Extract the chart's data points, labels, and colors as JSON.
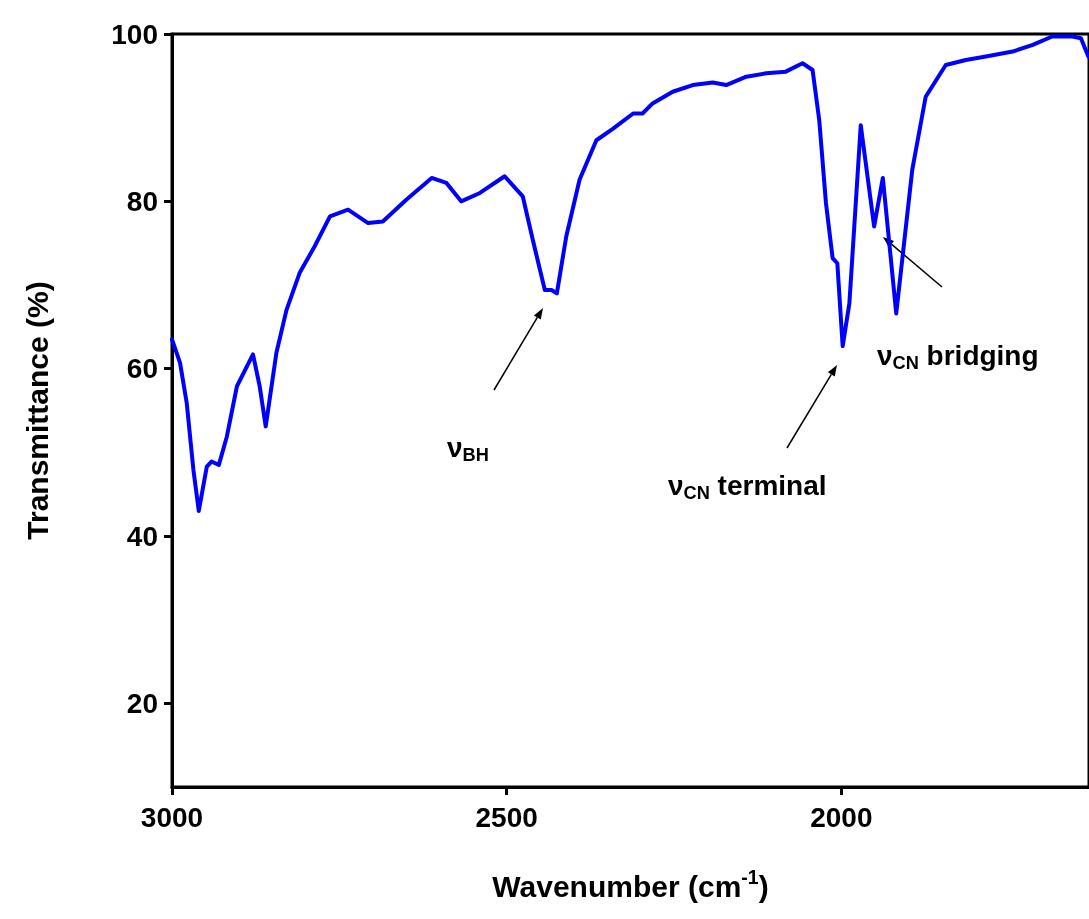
{
  "chart_data": {
    "type": "line",
    "xlabel": "Wavenumber (cm$^{-1}$)",
    "ylabel": "Transmittance (%)",
    "xlim": [
      3000,
      1630
    ],
    "xticks": [
      3000,
      2500,
      2000
    ],
    "ylim": [
      10,
      100
    ],
    "yticks": [
      20,
      40,
      60,
      80,
      100
    ],
    "grid": false,
    "marker": "none",
    "line_style": "solid",
    "x": [
      3000,
      2988,
      2978,
      2968,
      2960,
      2948,
      2941,
      2930,
      2918,
      2903,
      2879,
      2869,
      2860,
      2844,
      2829,
      2809,
      2787,
      2764,
      2737,
      2707,
      2685,
      2650,
      2612,
      2590,
      2568,
      2540,
      2503,
      2476,
      2461,
      2443,
      2433,
      2425,
      2411,
      2391,
      2366,
      2341,
      2311,
      2297,
      2282,
      2252,
      2222,
      2192,
      2172,
      2142,
      2112,
      2083,
      2058,
      2043,
      2033,
      2023,
      2013,
      2006,
      1998,
      1988,
      1971,
      1951,
      1938,
      1918,
      1894,
      1874,
      1844,
      1814,
      1784,
      1744,
      1714,
      1685,
      1655,
      1642,
      1631
    ],
    "series": [
      {
        "color": "#0000ff",
        "values": [
          63.5,
          60.7,
          55.9,
          47.9,
          43.0,
          48.3,
          48.9,
          48.5,
          51.9,
          57.9,
          61.7,
          57.9,
          53.1,
          61.9,
          67.0,
          71.5,
          74.6,
          78.2,
          79.0,
          77.4,
          77.6,
          80.2,
          82.8,
          82.2,
          80.0,
          81.0,
          83.0,
          80.6,
          75.4,
          69.4,
          69.4,
          69.0,
          75.8,
          82.6,
          87.3,
          88.7,
          90.5,
          90.5,
          91.7,
          93.1,
          93.9,
          94.2,
          93.9,
          94.9,
          95.3,
          95.5,
          96.5,
          95.7,
          89.7,
          79.8,
          73.2,
          72.6,
          62.7,
          67.8,
          89.1,
          77.0,
          82.8,
          66.6,
          83.8,
          92.5,
          96.3,
          96.9,
          97.3,
          97.9,
          98.7,
          99.7,
          99.7,
          99.5,
          97.3
        ]
      }
    ],
    "annotations": [
      "ν$_{BH}$",
      "ν$_{CN}$ terminal",
      "ν$_{CN}$ bridging"
    ]
  }
}
